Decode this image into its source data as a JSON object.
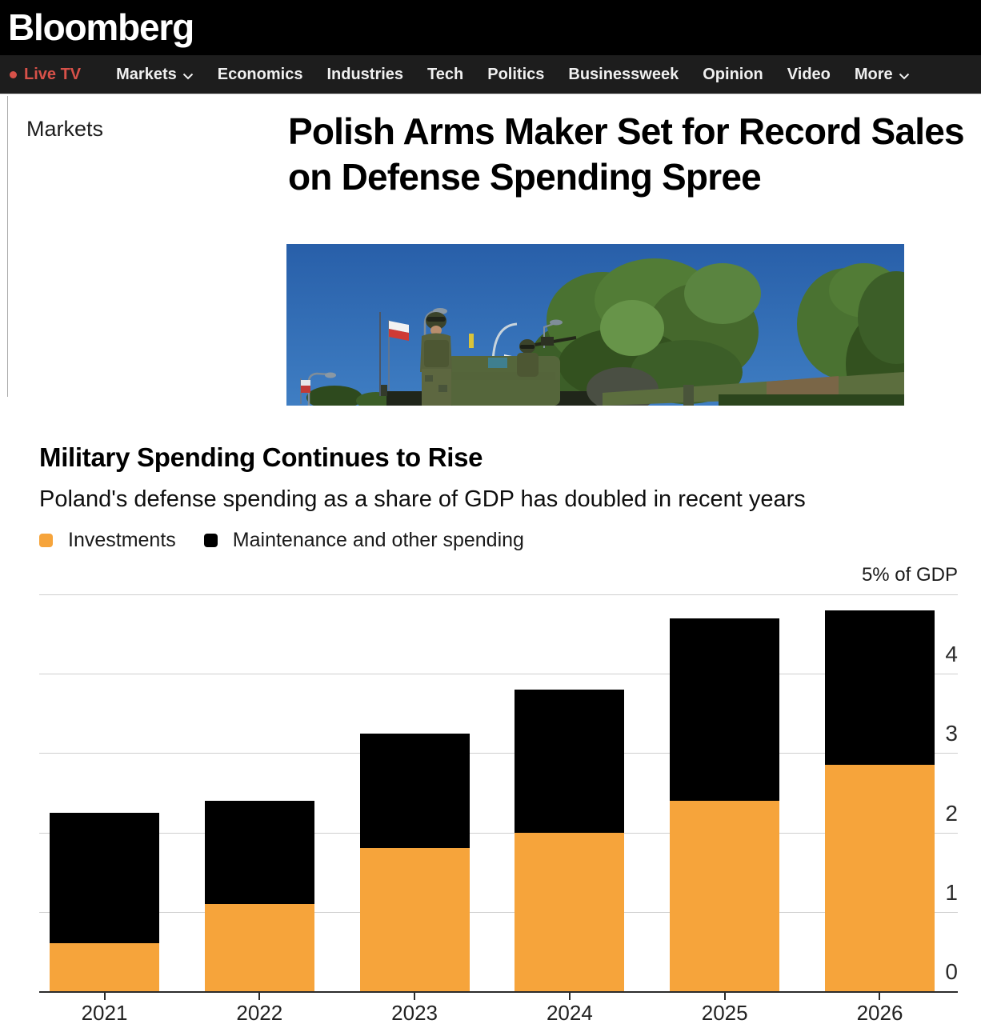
{
  "brand": {
    "logo": "Bloomberg"
  },
  "nav": {
    "live_tv": "Live TV",
    "items": [
      {
        "label": "Markets",
        "chevron": true
      },
      {
        "label": "Economics",
        "chevron": false
      },
      {
        "label": "Industries",
        "chevron": false
      },
      {
        "label": "Tech",
        "chevron": false
      },
      {
        "label": "Politics",
        "chevron": false
      },
      {
        "label": "Businessweek",
        "chevron": false
      },
      {
        "label": "Opinion",
        "chevron": false
      },
      {
        "label": "Video",
        "chevron": false
      },
      {
        "label": "More",
        "chevron": true
      }
    ]
  },
  "article": {
    "section": "Markets",
    "headline": "Polish Arms Maker Set for Record Sales on Defense Spending Spree"
  },
  "chart_data": {
    "type": "bar",
    "stacked": true,
    "title": "Military Spending Continues to Rise",
    "subtitle": "Poland's defense spending as a share of GDP has doubled in recent years",
    "unit_label": "5% of GDP",
    "categories": [
      "2021",
      "2022",
      "2023",
      "2024",
      "2025",
      "2026"
    ],
    "series": [
      {
        "name": "Investments",
        "color": "#F6A43B",
        "values": [
          0.6,
          1.1,
          1.8,
          2.0,
          2.4,
          2.85
        ]
      },
      {
        "name": "Maintenance and other spending",
        "color": "#000000",
        "values": [
          1.65,
          1.3,
          1.45,
          1.8,
          2.3,
          1.95
        ]
      }
    ],
    "totals": [
      2.25,
      2.4,
      3.25,
      3.8,
      4.7,
      4.8
    ],
    "ylim": [
      0,
      5
    ],
    "yticks": [
      4,
      3,
      2,
      1,
      0
    ],
    "grid": "horizontal",
    "legend_position": "top-left"
  },
  "colors": {
    "accent_orange": "#F6A43B",
    "bar_black": "#000000",
    "live_red": "#D75149",
    "nav_bg": "#1D1D1D",
    "masthead_bg": "#000000",
    "gridline": "#CFCFCF",
    "axis": "#2B2B2B"
  }
}
